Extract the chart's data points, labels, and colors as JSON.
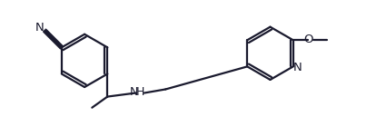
{
  "bg_color": "#ffffff",
  "line_color": "#1a1a2e",
  "line_width": 1.6,
  "font_size": 9.5,
  "figsize": [
    4.25,
    1.5
  ],
  "dpi": 100,
  "xlim": [
    0,
    10.5
  ],
  "ylim": [
    0,
    3.7
  ]
}
